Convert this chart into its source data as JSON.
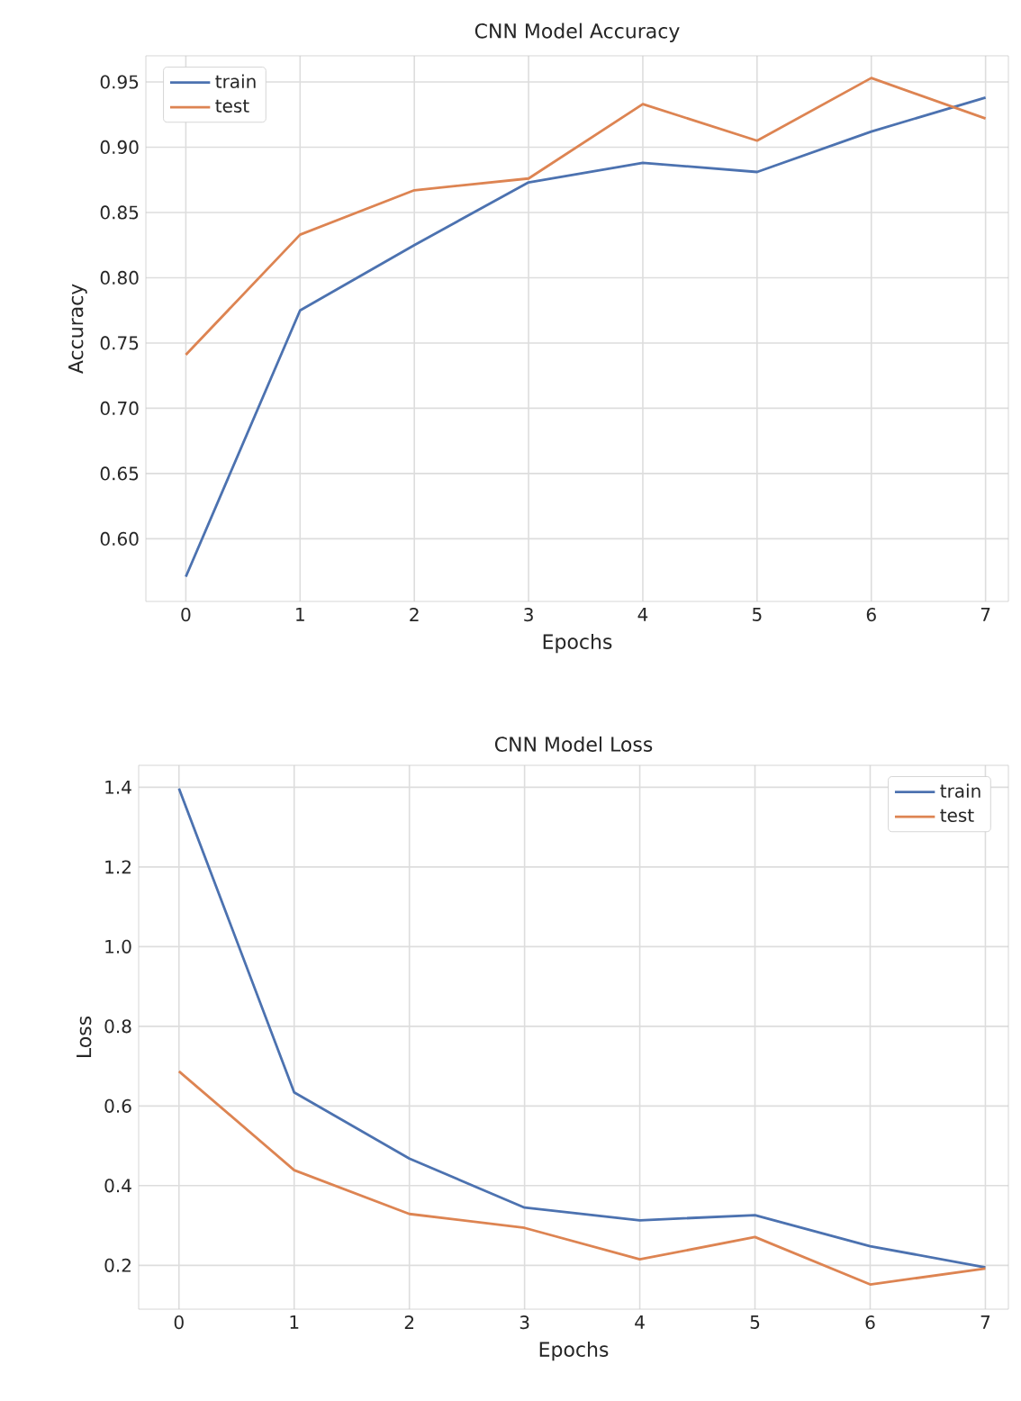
{
  "chart_data": [
    {
      "type": "line",
      "title": "CNN Model Accuracy",
      "xlabel": "Epochs",
      "ylabel": "Accuracy",
      "x": [
        0,
        1,
        2,
        3,
        4,
        5,
        6,
        7
      ],
      "series": [
        {
          "name": "train",
          "color": "#4c72b0",
          "values": [
            0.571,
            0.775,
            0.825,
            0.873,
            0.888,
            0.881,
            0.912,
            0.938
          ]
        },
        {
          "name": "test",
          "color": "#dd8452",
          "values": [
            0.741,
            0.833,
            0.867,
            0.876,
            0.933,
            0.905,
            0.953,
            0.922
          ]
        }
      ],
      "xlim": [
        -0.35,
        7.2
      ],
      "ylim": [
        0.552,
        0.97
      ],
      "xticks": [
        0,
        1,
        2,
        3,
        4,
        5,
        6,
        7
      ],
      "yticks": [
        {
          "value": 0.6,
          "label": "0.60"
        },
        0.65,
        {
          "value": 0.7,
          "label": "0.70"
        },
        0.75,
        {
          "value": 0.8,
          "label": "0.80"
        },
        0.85,
        {
          "value": 0.9,
          "label": "0.90"
        },
        0.95
      ],
      "grid": true,
      "legend": "top left"
    },
    {
      "type": "line",
      "title": "CNN Model Loss",
      "xlabel": "Epochs",
      "ylabel": "Loss",
      "x": [
        0,
        1,
        2,
        3,
        4,
        5,
        6,
        7
      ],
      "series": [
        {
          "name": "train",
          "color": "#4c72b0",
          "values": [
            1.397,
            0.634,
            0.468,
            0.345,
            0.313,
            0.326,
            0.248,
            0.195
          ]
        },
        {
          "name": "test",
          "color": "#dd8452",
          "values": [
            0.687,
            0.439,
            0.329,
            0.294,
            0.215,
            0.271,
            0.152,
            0.192
          ]
        }
      ],
      "xlim": [
        -0.35,
        7.2
      ],
      "ylim": [
        0.09,
        1.455
      ],
      "xticks": [
        0,
        1,
        2,
        3,
        4,
        5,
        6,
        7
      ],
      "yticks": [
        0.2,
        0.4,
        0.6,
        0.8,
        {
          "value": 1.0,
          "label": "1.0"
        },
        1.2,
        1.4
      ],
      "grid": true,
      "legend": "top right"
    }
  ]
}
